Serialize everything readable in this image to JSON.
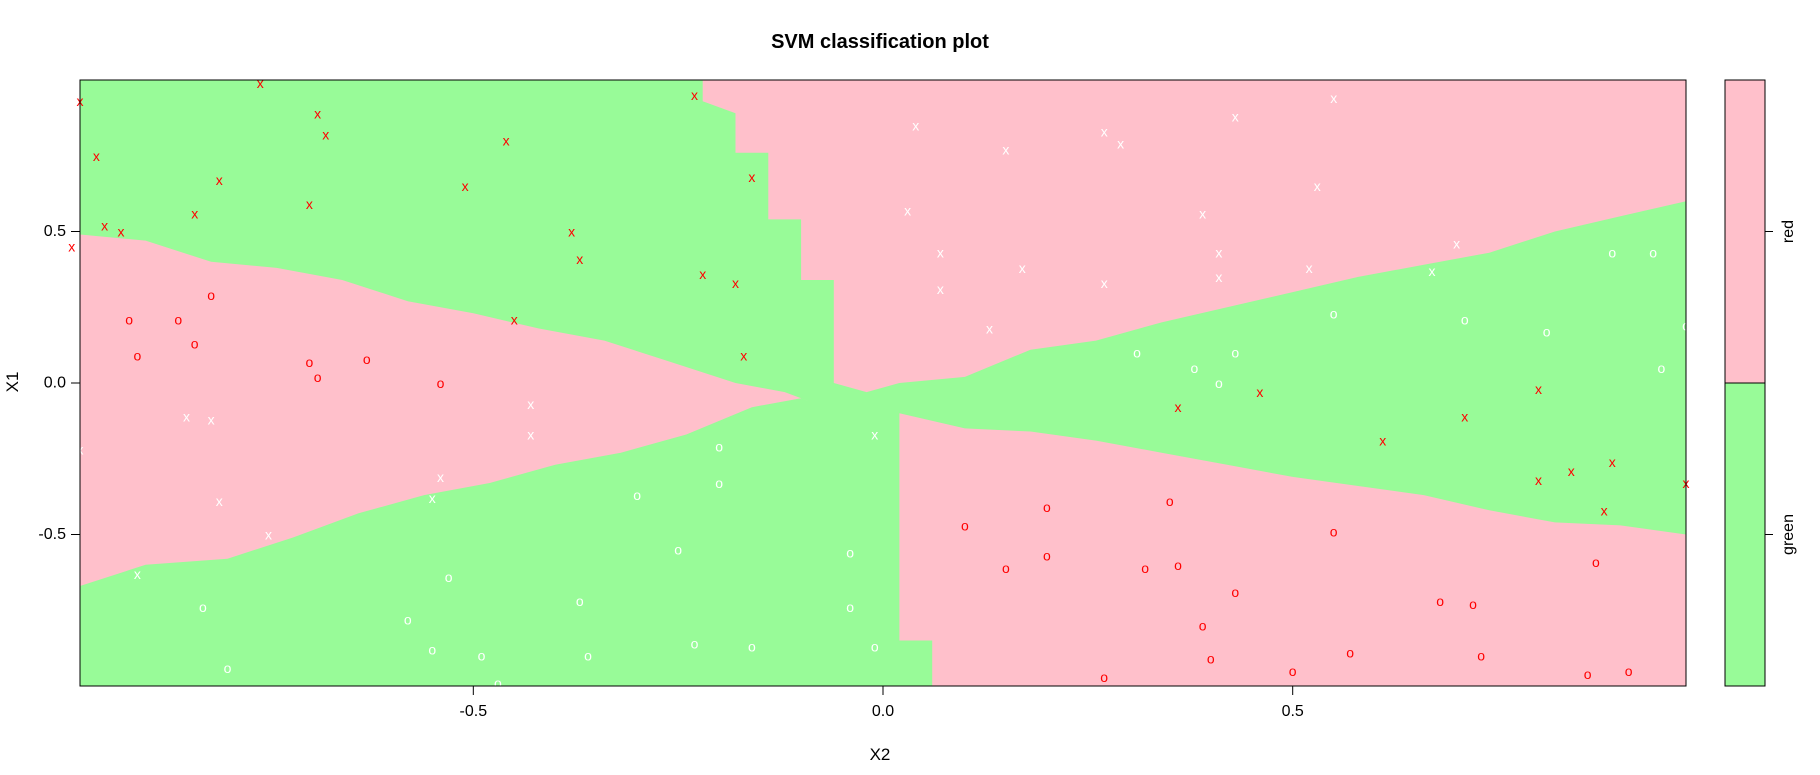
{
  "chart_data": {
    "type": "scatter",
    "title": "SVM classification plot",
    "xlabel": "X2",
    "ylabel": "X1",
    "xlim": [
      -0.98,
      0.98
    ],
    "ylim": [
      -1.0,
      1.0
    ],
    "x_ticks": [
      {
        "value": -0.5,
        "label": "-0.5"
      },
      {
        "value": 0.0,
        "label": "0.0"
      },
      {
        "value": 0.5,
        "label": "0.5"
      }
    ],
    "y_ticks": [
      {
        "value": -0.5,
        "label": "-0.5"
      },
      {
        "value": 0.0,
        "label": "0.0"
      },
      {
        "value": 0.5,
        "label": "0.5"
      }
    ],
    "region_colors": {
      "green": "#98fb98",
      "red": "#ffc0cb"
    },
    "legend": {
      "placement": "right",
      "entries": [
        {
          "label": "red",
          "color": "#ffc0cb",
          "range": [
            0,
            1
          ]
        },
        {
          "label": "green",
          "color": "#98fb98",
          "range": [
            -1,
            0
          ]
        }
      ]
    },
    "point_colors": {
      "red": "#ff0000",
      "white": "#ffffff"
    },
    "regions": [
      {
        "class": "red",
        "points": [
          [
            -0.98,
            0.49
          ],
          [
            -0.9,
            0.47
          ],
          [
            -0.82,
            0.4
          ],
          [
            -0.74,
            0.38
          ],
          [
            -0.66,
            0.34
          ],
          [
            -0.58,
            0.27
          ],
          [
            -0.5,
            0.23
          ],
          [
            -0.42,
            0.18
          ],
          [
            -0.34,
            0.14
          ],
          [
            -0.26,
            0.07
          ],
          [
            -0.18,
            0.0
          ],
          [
            -0.12,
            -0.03
          ],
          [
            -0.08,
            -0.07
          ],
          [
            -0.1,
            -0.05
          ],
          [
            -0.16,
            -0.08
          ],
          [
            -0.24,
            -0.17
          ],
          [
            -0.32,
            -0.23
          ],
          [
            -0.4,
            -0.27
          ],
          [
            -0.48,
            -0.33
          ],
          [
            -0.56,
            -0.37
          ],
          [
            -0.64,
            -0.43
          ],
          [
            -0.72,
            -0.51
          ],
          [
            -0.8,
            -0.58
          ],
          [
            -0.9,
            -0.6
          ],
          [
            -0.98,
            -0.67
          ]
        ]
      },
      {
        "class": "red",
        "points": [
          [
            -0.22,
            1.0
          ],
          [
            -0.22,
            0.93
          ],
          [
            -0.18,
            0.89
          ],
          [
            -0.18,
            0.76
          ],
          [
            -0.14,
            0.76
          ],
          [
            -0.14,
            0.54
          ],
          [
            -0.1,
            0.54
          ],
          [
            -0.1,
            0.34
          ],
          [
            -0.06,
            0.34
          ],
          [
            -0.06,
            0.0
          ],
          [
            -0.02,
            -0.03
          ],
          [
            0.02,
            0.0
          ],
          [
            0.1,
            0.02
          ],
          [
            0.18,
            0.11
          ],
          [
            0.26,
            0.14
          ],
          [
            0.34,
            0.2
          ],
          [
            0.42,
            0.25
          ],
          [
            0.5,
            0.3
          ],
          [
            0.58,
            0.35
          ],
          [
            0.66,
            0.39
          ],
          [
            0.74,
            0.43
          ],
          [
            0.82,
            0.5
          ],
          [
            0.9,
            0.55
          ],
          [
            0.98,
            0.6
          ],
          [
            0.98,
            1.0
          ]
        ]
      },
      {
        "class": "red",
        "points": [
          [
            0.02,
            -0.1
          ],
          [
            0.1,
            -0.15
          ],
          [
            0.18,
            -0.16
          ],
          [
            0.26,
            -0.19
          ],
          [
            0.34,
            -0.23
          ],
          [
            0.42,
            -0.27
          ],
          [
            0.5,
            -0.31
          ],
          [
            0.58,
            -0.34
          ],
          [
            0.66,
            -0.37
          ],
          [
            0.74,
            -0.42
          ],
          [
            0.82,
            -0.46
          ],
          [
            0.9,
            -0.47
          ],
          [
            0.98,
            -0.5
          ],
          [
            0.98,
            -1.0
          ],
          [
            0.06,
            -1.0
          ],
          [
            0.06,
            -0.85
          ],
          [
            0.02,
            -0.85
          ]
        ]
      }
    ],
    "points": [
      {
        "x": -0.98,
        "y": 0.93,
        "m": "x",
        "c": "red"
      },
      {
        "x": -0.96,
        "y": 0.75,
        "m": "x",
        "c": "red"
      },
      {
        "x": -0.95,
        "y": 0.52,
        "m": "x",
        "c": "red"
      },
      {
        "x": -0.93,
        "y": 0.5,
        "m": "x",
        "c": "red"
      },
      {
        "x": -0.99,
        "y": 0.45,
        "m": "x",
        "c": "red"
      },
      {
        "x": -0.84,
        "y": 0.56,
        "m": "x",
        "c": "red"
      },
      {
        "x": -0.81,
        "y": 0.67,
        "m": "x",
        "c": "red"
      },
      {
        "x": -0.76,
        "y": 0.99,
        "m": "x",
        "c": "red"
      },
      {
        "x": -0.7,
        "y": 0.59,
        "m": "x",
        "c": "red"
      },
      {
        "x": -0.69,
        "y": 0.89,
        "m": "x",
        "c": "red"
      },
      {
        "x": -0.68,
        "y": 0.82,
        "m": "x",
        "c": "red"
      },
      {
        "x": -0.51,
        "y": 0.65,
        "m": "x",
        "c": "red"
      },
      {
        "x": -0.46,
        "y": 0.8,
        "m": "x",
        "c": "red"
      },
      {
        "x": -0.38,
        "y": 0.5,
        "m": "x",
        "c": "red"
      },
      {
        "x": -0.37,
        "y": 0.41,
        "m": "x",
        "c": "red"
      },
      {
        "x": -0.45,
        "y": 0.21,
        "m": "x",
        "c": "red"
      },
      {
        "x": -0.23,
        "y": 0.95,
        "m": "x",
        "c": "red"
      },
      {
        "x": -0.16,
        "y": 0.68,
        "m": "x",
        "c": "red"
      },
      {
        "x": -0.22,
        "y": 0.36,
        "m": "x",
        "c": "red"
      },
      {
        "x": -0.18,
        "y": 0.33,
        "m": "x",
        "c": "red"
      },
      {
        "x": -0.17,
        "y": 0.09,
        "m": "x",
        "c": "red"
      },
      {
        "x": 0.36,
        "y": -0.08,
        "m": "x",
        "c": "red"
      },
      {
        "x": 0.46,
        "y": -0.03,
        "m": "x",
        "c": "red"
      },
      {
        "x": 0.61,
        "y": -0.19,
        "m": "x",
        "c": "red"
      },
      {
        "x": 0.71,
        "y": -0.11,
        "m": "x",
        "c": "red"
      },
      {
        "x": 0.8,
        "y": -0.02,
        "m": "x",
        "c": "red"
      },
      {
        "x": 0.8,
        "y": -0.32,
        "m": "x",
        "c": "red"
      },
      {
        "x": 0.84,
        "y": -0.29,
        "m": "x",
        "c": "red"
      },
      {
        "x": 0.89,
        "y": -0.26,
        "m": "x",
        "c": "red"
      },
      {
        "x": 0.88,
        "y": -0.42,
        "m": "x",
        "c": "red"
      },
      {
        "x": 0.98,
        "y": -0.33,
        "m": "x",
        "c": "red"
      },
      {
        "x": -0.92,
        "y": 0.21,
        "m": "o",
        "c": "red"
      },
      {
        "x": -0.86,
        "y": 0.21,
        "m": "o",
        "c": "red"
      },
      {
        "x": -0.82,
        "y": 0.29,
        "m": "o",
        "c": "red"
      },
      {
        "x": -0.84,
        "y": 0.13,
        "m": "o",
        "c": "red"
      },
      {
        "x": -0.91,
        "y": 0.09,
        "m": "o",
        "c": "red"
      },
      {
        "x": -0.7,
        "y": 0.07,
        "m": "o",
        "c": "red"
      },
      {
        "x": -0.69,
        "y": 0.02,
        "m": "o",
        "c": "red"
      },
      {
        "x": -0.63,
        "y": 0.08,
        "m": "o",
        "c": "red"
      },
      {
        "x": -0.54,
        "y": 0.0,
        "m": "o",
        "c": "red"
      },
      {
        "x": 0.1,
        "y": -0.47,
        "m": "o",
        "c": "red"
      },
      {
        "x": 0.2,
        "y": -0.41,
        "m": "o",
        "c": "red"
      },
      {
        "x": 0.15,
        "y": -0.61,
        "m": "o",
        "c": "red"
      },
      {
        "x": 0.2,
        "y": -0.57,
        "m": "o",
        "c": "red"
      },
      {
        "x": 0.35,
        "y": -0.39,
        "m": "o",
        "c": "red"
      },
      {
        "x": 0.32,
        "y": -0.61,
        "m": "o",
        "c": "red"
      },
      {
        "x": 0.36,
        "y": -0.6,
        "m": "o",
        "c": "red"
      },
      {
        "x": 0.43,
        "y": -0.69,
        "m": "o",
        "c": "red"
      },
      {
        "x": 0.39,
        "y": -0.8,
        "m": "o",
        "c": "red"
      },
      {
        "x": 0.4,
        "y": -0.91,
        "m": "o",
        "c": "red"
      },
      {
        "x": 0.27,
        "y": -0.97,
        "m": "o",
        "c": "red"
      },
      {
        "x": 0.5,
        "y": -0.95,
        "m": "o",
        "c": "red"
      },
      {
        "x": 0.55,
        "y": -0.49,
        "m": "o",
        "c": "red"
      },
      {
        "x": 0.57,
        "y": -0.89,
        "m": "o",
        "c": "red"
      },
      {
        "x": 0.68,
        "y": -0.72,
        "m": "o",
        "c": "red"
      },
      {
        "x": 0.72,
        "y": -0.73,
        "m": "o",
        "c": "red"
      },
      {
        "x": 0.73,
        "y": -0.9,
        "m": "o",
        "c": "red"
      },
      {
        "x": 0.87,
        "y": -0.59,
        "m": "o",
        "c": "red"
      },
      {
        "x": 0.86,
        "y": -0.96,
        "m": "o",
        "c": "red"
      },
      {
        "x": 0.91,
        "y": -0.95,
        "m": "o",
        "c": "red"
      },
      {
        "x": 0.04,
        "y": 0.85,
        "m": "x",
        "c": "white"
      },
      {
        "x": 0.15,
        "y": 0.77,
        "m": "x",
        "c": "white"
      },
      {
        "x": 0.27,
        "y": 0.83,
        "m": "x",
        "c": "white"
      },
      {
        "x": 0.29,
        "y": 0.79,
        "m": "x",
        "c": "white"
      },
      {
        "x": 0.43,
        "y": 0.88,
        "m": "x",
        "c": "white"
      },
      {
        "x": 0.55,
        "y": 0.94,
        "m": "x",
        "c": "white"
      },
      {
        "x": 0.53,
        "y": 0.65,
        "m": "x",
        "c": "white"
      },
      {
        "x": 0.03,
        "y": 0.57,
        "m": "x",
        "c": "white"
      },
      {
        "x": 0.07,
        "y": 0.43,
        "m": "x",
        "c": "white"
      },
      {
        "x": 0.17,
        "y": 0.38,
        "m": "x",
        "c": "white"
      },
      {
        "x": 0.07,
        "y": 0.31,
        "m": "x",
        "c": "white"
      },
      {
        "x": 0.13,
        "y": 0.18,
        "m": "x",
        "c": "white"
      },
      {
        "x": 0.27,
        "y": 0.33,
        "m": "x",
        "c": "white"
      },
      {
        "x": 0.39,
        "y": 0.56,
        "m": "x",
        "c": "white"
      },
      {
        "x": 0.41,
        "y": 0.43,
        "m": "x",
        "c": "white"
      },
      {
        "x": 0.41,
        "y": 0.35,
        "m": "x",
        "c": "white"
      },
      {
        "x": 0.52,
        "y": 0.38,
        "m": "x",
        "c": "white"
      },
      {
        "x": 0.67,
        "y": 0.37,
        "m": "x",
        "c": "white"
      },
      {
        "x": 0.7,
        "y": 0.46,
        "m": "x",
        "c": "white"
      },
      {
        "x": -0.98,
        "y": -0.22,
        "m": "x",
        "c": "white"
      },
      {
        "x": -0.85,
        "y": -0.11,
        "m": "x",
        "c": "white"
      },
      {
        "x": -0.82,
        "y": -0.12,
        "m": "x",
        "c": "white"
      },
      {
        "x": -0.81,
        "y": -0.39,
        "m": "x",
        "c": "white"
      },
      {
        "x": -0.75,
        "y": -0.5,
        "m": "x",
        "c": "white"
      },
      {
        "x": -0.91,
        "y": -0.63,
        "m": "x",
        "c": "white"
      },
      {
        "x": -0.54,
        "y": -0.31,
        "m": "x",
        "c": "white"
      },
      {
        "x": -0.55,
        "y": -0.38,
        "m": "x",
        "c": "white"
      },
      {
        "x": -0.43,
        "y": -0.07,
        "m": "x",
        "c": "white"
      },
      {
        "x": -0.43,
        "y": -0.17,
        "m": "x",
        "c": "white"
      },
      {
        "x": -0.01,
        "y": -0.17,
        "m": "x",
        "c": "white"
      },
      {
        "x": 0.31,
        "y": 0.1,
        "m": "o",
        "c": "white"
      },
      {
        "x": 0.38,
        "y": 0.05,
        "m": "o",
        "c": "white"
      },
      {
        "x": 0.41,
        "y": 0.0,
        "m": "o",
        "c": "white"
      },
      {
        "x": 0.43,
        "y": 0.1,
        "m": "o",
        "c": "white"
      },
      {
        "x": 0.55,
        "y": 0.23,
        "m": "o",
        "c": "white"
      },
      {
        "x": 0.71,
        "y": 0.21,
        "m": "o",
        "c": "white"
      },
      {
        "x": 0.81,
        "y": 0.17,
        "m": "o",
        "c": "white"
      },
      {
        "x": 0.89,
        "y": 0.43,
        "m": "o",
        "c": "white"
      },
      {
        "x": 0.94,
        "y": 0.43,
        "m": "o",
        "c": "white"
      },
      {
        "x": 0.98,
        "y": 0.19,
        "m": "o",
        "c": "white"
      },
      {
        "x": 0.95,
        "y": 0.05,
        "m": "o",
        "c": "white"
      },
      {
        "x": -0.2,
        "y": -0.21,
        "m": "o",
        "c": "white"
      },
      {
        "x": -0.2,
        "y": -0.33,
        "m": "o",
        "c": "white"
      },
      {
        "x": -0.3,
        "y": -0.37,
        "m": "o",
        "c": "white"
      },
      {
        "x": -0.25,
        "y": -0.55,
        "m": "o",
        "c": "white"
      },
      {
        "x": -0.04,
        "y": -0.56,
        "m": "o",
        "c": "white"
      },
      {
        "x": -0.04,
        "y": -0.74,
        "m": "o",
        "c": "white"
      },
      {
        "x": -0.01,
        "y": -0.87,
        "m": "o",
        "c": "white"
      },
      {
        "x": -0.16,
        "y": -0.87,
        "m": "o",
        "c": "white"
      },
      {
        "x": -0.23,
        "y": -0.86,
        "m": "o",
        "c": "white"
      },
      {
        "x": -0.37,
        "y": -0.72,
        "m": "o",
        "c": "white"
      },
      {
        "x": -0.36,
        "y": -0.9,
        "m": "o",
        "c": "white"
      },
      {
        "x": -0.53,
        "y": -0.64,
        "m": "o",
        "c": "white"
      },
      {
        "x": -0.58,
        "y": -0.78,
        "m": "o",
        "c": "white"
      },
      {
        "x": -0.55,
        "y": -0.88,
        "m": "o",
        "c": "white"
      },
      {
        "x": -0.49,
        "y": -0.9,
        "m": "o",
        "c": "white"
      },
      {
        "x": -0.47,
        "y": -0.99,
        "m": "o",
        "c": "white"
      },
      {
        "x": -0.83,
        "y": -0.74,
        "m": "o",
        "c": "white"
      },
      {
        "x": -0.8,
        "y": -0.94,
        "m": "o",
        "c": "white"
      }
    ]
  }
}
